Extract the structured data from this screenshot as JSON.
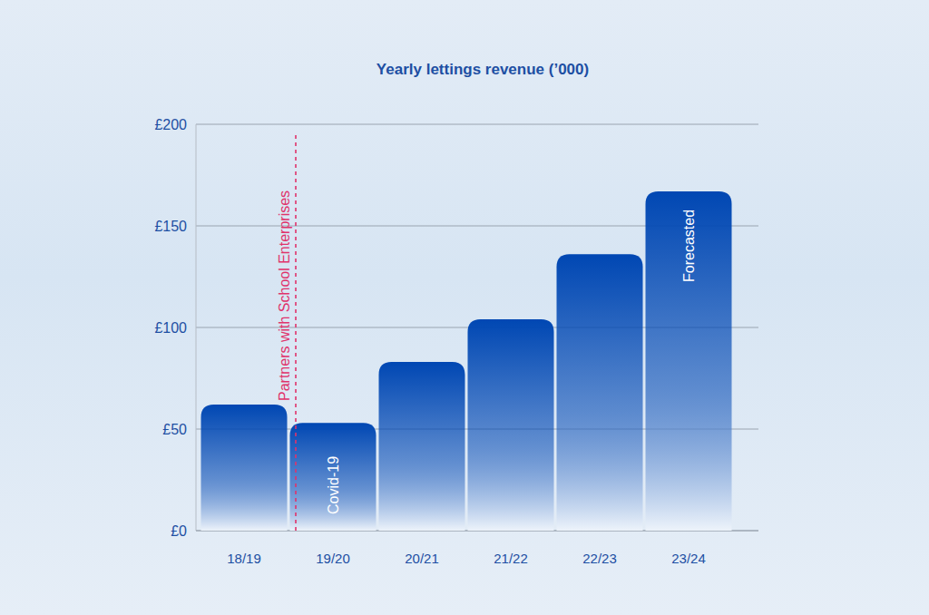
{
  "chart_data": {
    "type": "bar",
    "title": "Yearly lettings revenue (’000)",
    "categories": [
      "18/19",
      "19/20",
      "20/21",
      "21/22",
      "22/23",
      "23/24"
    ],
    "values": [
      62,
      53,
      83,
      104,
      136,
      167
    ],
    "color": "#0047b3",
    "ylim": [
      0,
      200
    ],
    "yticks": [
      {
        "value": 0,
        "label": "£0"
      },
      {
        "value": 50,
        "label": "£50"
      },
      {
        "value": 100,
        "label": "£100"
      },
      {
        "value": 150,
        "label": "£150"
      },
      {
        "value": 200,
        "label": "£200"
      }
    ],
    "grid": true,
    "annotations": [
      {
        "text": "Partners with School Enterprises",
        "category": "19/20",
        "position": "before"
      },
      {
        "text": "Covid-19",
        "category": "19/20",
        "position": "bottom"
      },
      {
        "text": "Forecasted",
        "category": "23/24",
        "position": "top"
      }
    ]
  }
}
